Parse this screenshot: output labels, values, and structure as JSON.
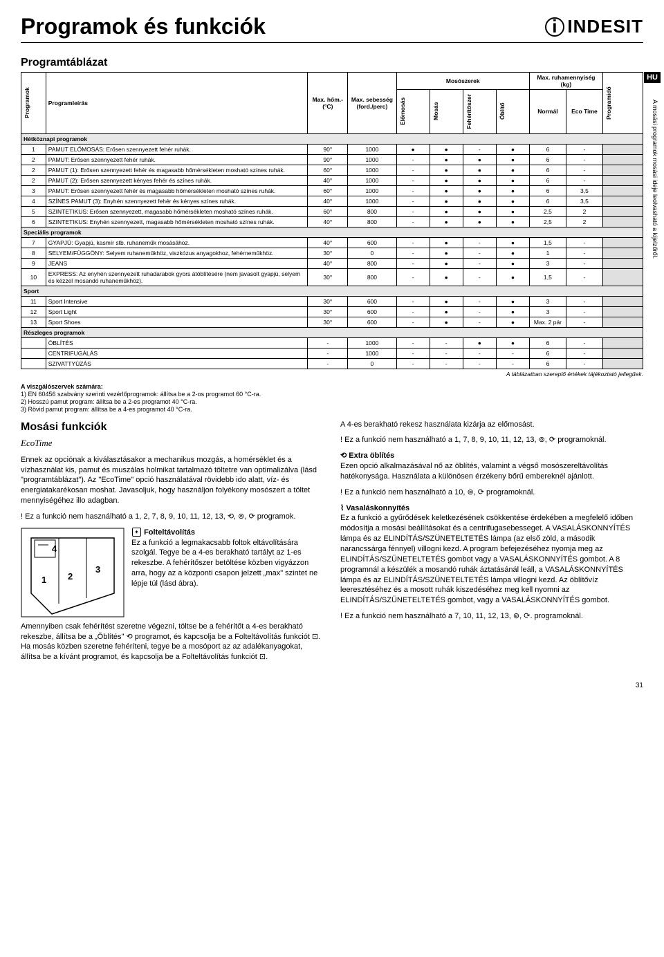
{
  "header": {
    "title": "Programok és funkciók",
    "brand": "INDESIT",
    "lang_badge": "HU"
  },
  "table": {
    "section_title": "Programtáblázat",
    "vertical_note": "A mosási programok mosási ideje leolvasható a kijelzőről.",
    "caption": "A táblázatban szereplő értékek tájékoztató jellegűek.",
    "col_rot": "Programok",
    "col_desc": "Programleírás",
    "col_temp": "Max. hőm.- (°C)",
    "col_speed": "Max. sebesség (ford./perc)",
    "col_det_group": "Mosószerek",
    "col_det1": "Előmosás",
    "col_det2": "Mosás",
    "col_det3": "Fehérítőszer",
    "col_det4": "Öblítő",
    "col_load_group": "Max. ruhamennyiség (kg)",
    "col_load1": "Normál",
    "col_load2": "Eco Time",
    "col_time": "Programidő",
    "group1": "Hétköznapi programok",
    "group2": "Speciális programok",
    "group3": "Sport",
    "group4": "Részleges programok",
    "rows": [
      {
        "n": "1",
        "desc": "PAMUT ELŐMOSÁS: Erősen szennyezett fehér ruhák.",
        "t": "90°",
        "s": "1000",
        "d": [
          "●",
          "●",
          "-",
          "●"
        ],
        "l": [
          "6",
          "-"
        ]
      },
      {
        "n": "2",
        "desc": "PAMUT: Erősen szennyezett fehér ruhák.",
        "t": "90°",
        "s": "1000",
        "d": [
          "-",
          "●",
          "●",
          "●"
        ],
        "l": [
          "6",
          "-"
        ]
      },
      {
        "n": "2",
        "desc": "PAMUT (1): Erősen szennyezett fehér és magasabb hőmérsékleten mosható színes ruhák.",
        "t": "60°",
        "s": "1000",
        "d": [
          "-",
          "●",
          "●",
          "●"
        ],
        "l": [
          "6",
          "-"
        ]
      },
      {
        "n": "2",
        "desc": "PAMUT (2): Erősen szennyezett kényes fehér és színes ruhák.",
        "t": "40°",
        "s": "1000",
        "d": [
          "-",
          "●",
          "●",
          "●"
        ],
        "l": [
          "6",
          "-"
        ]
      },
      {
        "n": "3",
        "desc": "PAMUT: Erősen szennyezett fehér és magasabb hőmérsékleten mosható színes ruhák.",
        "t": "60°",
        "s": "1000",
        "d": [
          "-",
          "●",
          "●",
          "●"
        ],
        "l": [
          "6",
          "3,5"
        ]
      },
      {
        "n": "4",
        "desc": "SZÍNES PAMUT (3): Enyhén szennyezett fehér és kényes színes ruhák.",
        "t": "40°",
        "s": "1000",
        "d": [
          "-",
          "●",
          "●",
          "●"
        ],
        "l": [
          "6",
          "3,5"
        ]
      },
      {
        "n": "5",
        "desc": "SZINTETIKUS: Erősen szennyezett, magasabb hőmérsékleten mosható színes ruhák.",
        "t": "60°",
        "s": "800",
        "d": [
          "-",
          "●",
          "●",
          "●"
        ],
        "l": [
          "2,5",
          "2"
        ]
      },
      {
        "n": "6",
        "desc": "SZINTETIKUS: Enyhén szennyezett, magasabb hőmérsékleten mosható színes ruhák.",
        "t": "40°",
        "s": "800",
        "d": [
          "-",
          "●",
          "●",
          "●"
        ],
        "l": [
          "2,5",
          "2"
        ]
      }
    ],
    "rows2": [
      {
        "n": "7",
        "desc": "GYAPJÚ: Gyapjú, kasmír stb. ruhaneműk mosásához.",
        "t": "40°",
        "s": "600",
        "d": [
          "-",
          "●",
          "-",
          "●"
        ],
        "l": [
          "1,5",
          "-"
        ]
      },
      {
        "n": "8",
        "desc": "SELYEM/FÜGGÖNY: Selyem ruhaneműkhöz, viszkózus anyagokhoz, fehérneműkhöz.",
        "t": "30°",
        "s": "0",
        "d": [
          "-",
          "●",
          "-",
          "●"
        ],
        "l": [
          "1",
          "-"
        ]
      },
      {
        "n": "9",
        "desc": "JEANS",
        "t": "40°",
        "s": "800",
        "d": [
          "-",
          "●",
          "-",
          "●"
        ],
        "l": [
          "3",
          "-"
        ]
      },
      {
        "n": "10",
        "desc": "EXPRESS: Az enyhén szennyezett ruhadarabok gyors átöblítésére (nem javasolt gyapjú, selyem és kézzel mosandó ruhaneműkhöz).",
        "t": "30°",
        "s": "800",
        "d": [
          "-",
          "●",
          "-",
          "●"
        ],
        "l": [
          "1,5",
          "-"
        ]
      }
    ],
    "rows3": [
      {
        "n": "11",
        "desc": "Sport Intensive",
        "t": "30°",
        "s": "600",
        "d": [
          "-",
          "●",
          "-",
          "●"
        ],
        "l": [
          "3",
          "-"
        ]
      },
      {
        "n": "12",
        "desc": "Sport Light",
        "t": "30°",
        "s": "600",
        "d": [
          "-",
          "●",
          "-",
          "●"
        ],
        "l": [
          "3",
          "-"
        ]
      },
      {
        "n": "13",
        "desc": "Sport Shoes",
        "t": "30°",
        "s": "600",
        "d": [
          "-",
          "●",
          "-",
          "●"
        ],
        "l": [
          "Max. 2 pár",
          "-"
        ]
      }
    ],
    "rows4": [
      {
        "n": "",
        "desc": "ÖBLÍTÉS",
        "t": "-",
        "s": "1000",
        "d": [
          "-",
          "-",
          "●",
          "●"
        ],
        "l": [
          "6",
          "-"
        ]
      },
      {
        "n": "",
        "desc": "CENTRIFUGÁLÁS",
        "t": "-",
        "s": "1000",
        "d": [
          "-",
          "-",
          "-",
          "-"
        ],
        "l": [
          "6",
          "-"
        ]
      },
      {
        "n": "",
        "desc": "SZIVATTYÚZÁS",
        "t": "-",
        "s": "0",
        "d": [
          "-",
          "-",
          "-",
          "-"
        ],
        "l": [
          "6",
          "-"
        ]
      }
    ]
  },
  "footnotes": {
    "title": "A viszgálószervek számára:",
    "l1": "1) EN 60456 szabvány szerinti vezérlőprogramok: állítsa be a 2-os programot 60 °C-ra.",
    "l2": "2) Hosszú pamut program: állítsa be a 2-es programot 40 °C-ra.",
    "l3": "3) Rövid pamut program: állítsa be a 4-es programot 40 °C-ra."
  },
  "mf": {
    "title": "Mosási funkciók",
    "eco_label": "EcoTime",
    "eco_body": "Ennek az opciónak a kiválasztásakor a mechanikus mozgás, a homérséklet és a vízhasználat kis, pamut és muszálas holmikat tartalmazó töltetre van optimalizálva (lásd \"programtáblázat\"). Az \"EcoTime\" opció használatával rövidebb ido alatt, víz- és energiatakarékosan moshat. Javasoljuk, hogy használjon folyékony mosószert a töltet mennyiségéhez illo adagban.",
    "eco_warn": "! Ez a funkció nem használható a 1, 2, 7, 8, 9, 10, 11, 12, 13, ⟲, ⊚, ⟳ programok.",
    "stain_h": "Folteltávolítás",
    "stain_body": "Ez a funkció a legmakacsabb foltok eltávolítására szolgál. Tegye be a 4-es berakható tartályt az 1-es rekeszbe. A fehérítőszer betöltése közben vigyázzon arra, hogy az a központi csapon jelzett „max\" szintet ne lépje túl (lásd ábra).",
    "stain_body2": "Amennyiben csak fehérítést szeretne végezni, töltse be a fehérítőt a 4-es berakható rekeszbe, állítsa be a „Öblítés\" ⟲ programot, és kapcsolja be a Folteltávolítás funkciót ⊡. Ha mosás közben szeretne fehéríteni, tegye be a mosóport az az adalékanyagokat, állítsa be a kívánt programot, és kapcsolja be a Folteltávolítás funkciót ⊡.",
    "stain_warn_top": "A 4-es berakható rekesz használata kizárja az előmosást.",
    "stain_warn2": "! Ez a funkció nem használható a 1, 7, 8, 9, 10, 11, 12, 13, ⊚, ⟳ programoknál.",
    "rinse_h": "⟲ Extra öblítés",
    "rinse_body": "Ezen opció alkalmazásával nő az öblítés, valamint a végső mosószereltávolítás hatékonysága. Használata a különösen érzékeny bőrű embereknél ajánlott.",
    "rinse_warn": "! Ez a funkció nem használható a 10, ⊚, ⟳ programoknál.",
    "iron_h": "⌇ Vasaláskonnyítés",
    "iron_body": "Ez a funkció a gyűrődések keletkezésének csökkentése érdekében a megfelelő időben módosítja a mosási beállításokat és a centrifugasebesseget. A VASALÁSKONNYÍTÉS lámpa és az ELINDÍTÁS/SZÜNETELTETÉS lámpa (az első zöld, a második narancssárga fénnyel) villogni kezd. A program befejezéséhez nyomja meg az ELINDÍTÁS/SZÜNETELTETÉS gombot vagy a VASALÁSKONNYÍTÉS gombot. A 8 programnál a készülék a mosandó ruhák áztatásánál leáll, a VASALÁSKONNYÍTÉS lámpa és az ELINDÍTÁS/SZÜNETELTETÉS lámpa villogni kezd. Az öblítővíz leeresztéséhez és a mosott ruhák kiszedéséhez meg kell nyomni az ELINDÍTÁS/SZÜNETELTETÉS gombot, vagy a VASALÁSKONNYÍTÉS gombot.",
    "iron_warn": "! Ez a funkció nem használható a 7, 10, 11, 12, 13, ⊚, ⟳. programoknál."
  },
  "page_num": "31"
}
